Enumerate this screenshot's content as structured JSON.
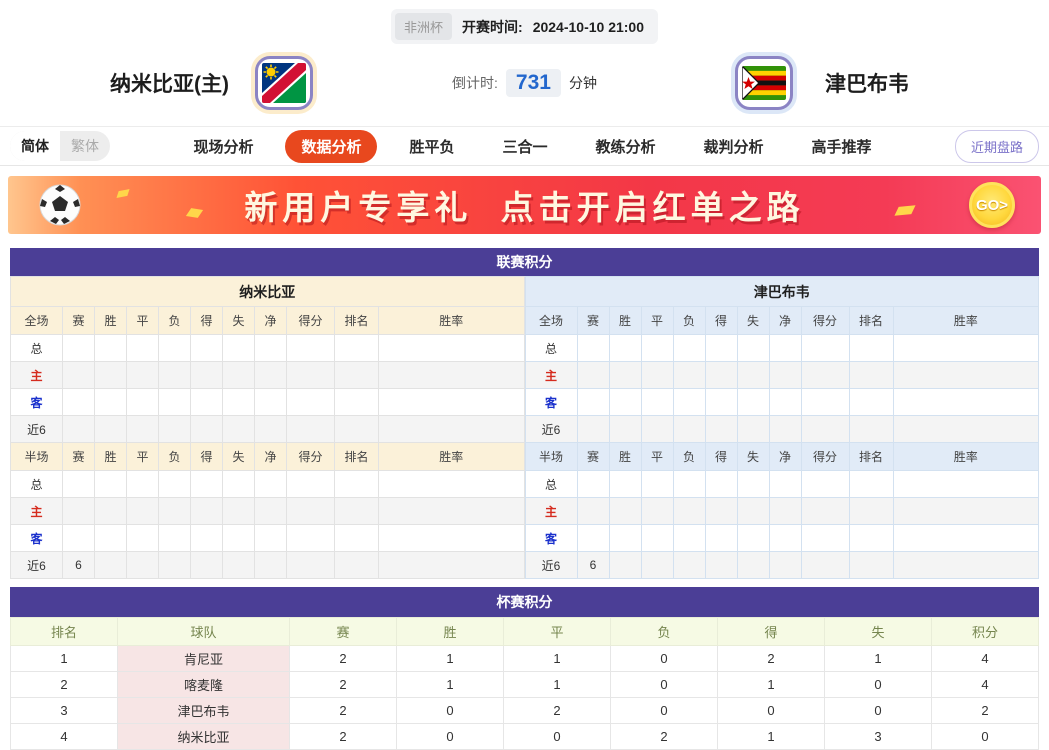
{
  "topbar": {
    "league_badge": "非洲杯",
    "kickoff_label": "开赛时间:",
    "kickoff_time": "2024-10-10 21:00"
  },
  "header": {
    "home_team": "纳米比亚(主)",
    "away_team": "津巴布韦",
    "countdown_label": "倒计时:",
    "countdown_value": "731",
    "countdown_unit": "分钟"
  },
  "lang": {
    "simplified": "简体",
    "traditional": "繁体"
  },
  "nav": {
    "items": [
      "现场分析",
      "数据分析",
      "胜平负",
      "三合一",
      "教练分析",
      "裁判分析",
      "高手推荐"
    ],
    "active": "数据分析",
    "recent_trend_button": "近期盘路"
  },
  "banner": {
    "headline": "新用户专享礼  点击开启红单之路",
    "go_label": "GO>"
  },
  "league_table": {
    "title": "联赛积分",
    "columns": [
      "赛",
      "胜",
      "平",
      "负",
      "得",
      "失",
      "净",
      "得分",
      "排名",
      "胜率"
    ],
    "halves": [
      {
        "team": "纳米比亚",
        "side": "home",
        "sections": [
          {
            "label": "全场",
            "rows": [
              {
                "label": "总",
                "cells": [
                  "",
                  "",
                  "",
                  "",
                  "",
                  "",
                  "",
                  "",
                  "",
                  ""
                ]
              },
              {
                "label": "主",
                "cells": [
                  "",
                  "",
                  "",
                  "",
                  "",
                  "",
                  "",
                  "",
                  "",
                  ""
                ]
              },
              {
                "label": "客",
                "cells": [
                  "",
                  "",
                  "",
                  "",
                  "",
                  "",
                  "",
                  "",
                  "",
                  ""
                ]
              },
              {
                "label": "近6",
                "cells": [
                  "",
                  "",
                  "",
                  "",
                  "",
                  "",
                  "",
                  "",
                  "",
                  ""
                ]
              }
            ]
          },
          {
            "label": "半场",
            "rows": [
              {
                "label": "总",
                "cells": [
                  "",
                  "",
                  "",
                  "",
                  "",
                  "",
                  "",
                  "",
                  "",
                  ""
                ]
              },
              {
                "label": "主",
                "cells": [
                  "",
                  "",
                  "",
                  "",
                  "",
                  "",
                  "",
                  "",
                  "",
                  ""
                ]
              },
              {
                "label": "客",
                "cells": [
                  "",
                  "",
                  "",
                  "",
                  "",
                  "",
                  "",
                  "",
                  "",
                  ""
                ]
              },
              {
                "label": "近6",
                "cells": [
                  "6",
                  "",
                  "",
                  "",
                  "",
                  "",
                  "",
                  "",
                  "",
                  ""
                ]
              }
            ]
          }
        ]
      },
      {
        "team": "津巴布韦",
        "side": "away",
        "sections": [
          {
            "label": "全场",
            "rows": [
              {
                "label": "总",
                "cells": [
                  "",
                  "",
                  "",
                  "",
                  "",
                  "",
                  "",
                  "",
                  "",
                  ""
                ]
              },
              {
                "label": "主",
                "cells": [
                  "",
                  "",
                  "",
                  "",
                  "",
                  "",
                  "",
                  "",
                  "",
                  ""
                ]
              },
              {
                "label": "客",
                "cells": [
                  "",
                  "",
                  "",
                  "",
                  "",
                  "",
                  "",
                  "",
                  "",
                  ""
                ]
              },
              {
                "label": "近6",
                "cells": [
                  "",
                  "",
                  "",
                  "",
                  "",
                  "",
                  "",
                  "",
                  "",
                  ""
                ]
              }
            ]
          },
          {
            "label": "半场",
            "rows": [
              {
                "label": "总",
                "cells": [
                  "",
                  "",
                  "",
                  "",
                  "",
                  "",
                  "",
                  "",
                  "",
                  ""
                ]
              },
              {
                "label": "主",
                "cells": [
                  "",
                  "",
                  "",
                  "",
                  "",
                  "",
                  "",
                  "",
                  "",
                  ""
                ]
              },
              {
                "label": "客",
                "cells": [
                  "",
                  "",
                  "",
                  "",
                  "",
                  "",
                  "",
                  "",
                  "",
                  ""
                ]
              },
              {
                "label": "近6",
                "cells": [
                  "6",
                  "",
                  "",
                  "",
                  "",
                  "",
                  "",
                  "",
                  "",
                  ""
                ]
              }
            ]
          }
        ]
      }
    ]
  },
  "cup_table": {
    "title": "杯赛积分",
    "columns": [
      "排名",
      "球队",
      "赛",
      "胜",
      "平",
      "负",
      "得",
      "失",
      "积分"
    ],
    "rows": [
      [
        "1",
        "肯尼亚",
        "2",
        "1",
        "1",
        "0",
        "2",
        "1",
        "4"
      ],
      [
        "2",
        "喀麦隆",
        "2",
        "1",
        "1",
        "0",
        "1",
        "0",
        "4"
      ],
      [
        "3",
        "津巴布韦",
        "2",
        "0",
        "2",
        "0",
        "0",
        "0",
        "2"
      ],
      [
        "4",
        "纳米比亚",
        "2",
        "0",
        "0",
        "2",
        "1",
        "3",
        "0"
      ]
    ]
  },
  "colors": {
    "accent_purple": "#4b3e96",
    "active_tab_orange": "#e8481e",
    "home_panel": "#fbf1d9",
    "away_panel": "#e1ebf7",
    "countdown_blue": "#2367cd",
    "label_red": "#d52b1e",
    "label_blue": "#1b31cc"
  }
}
